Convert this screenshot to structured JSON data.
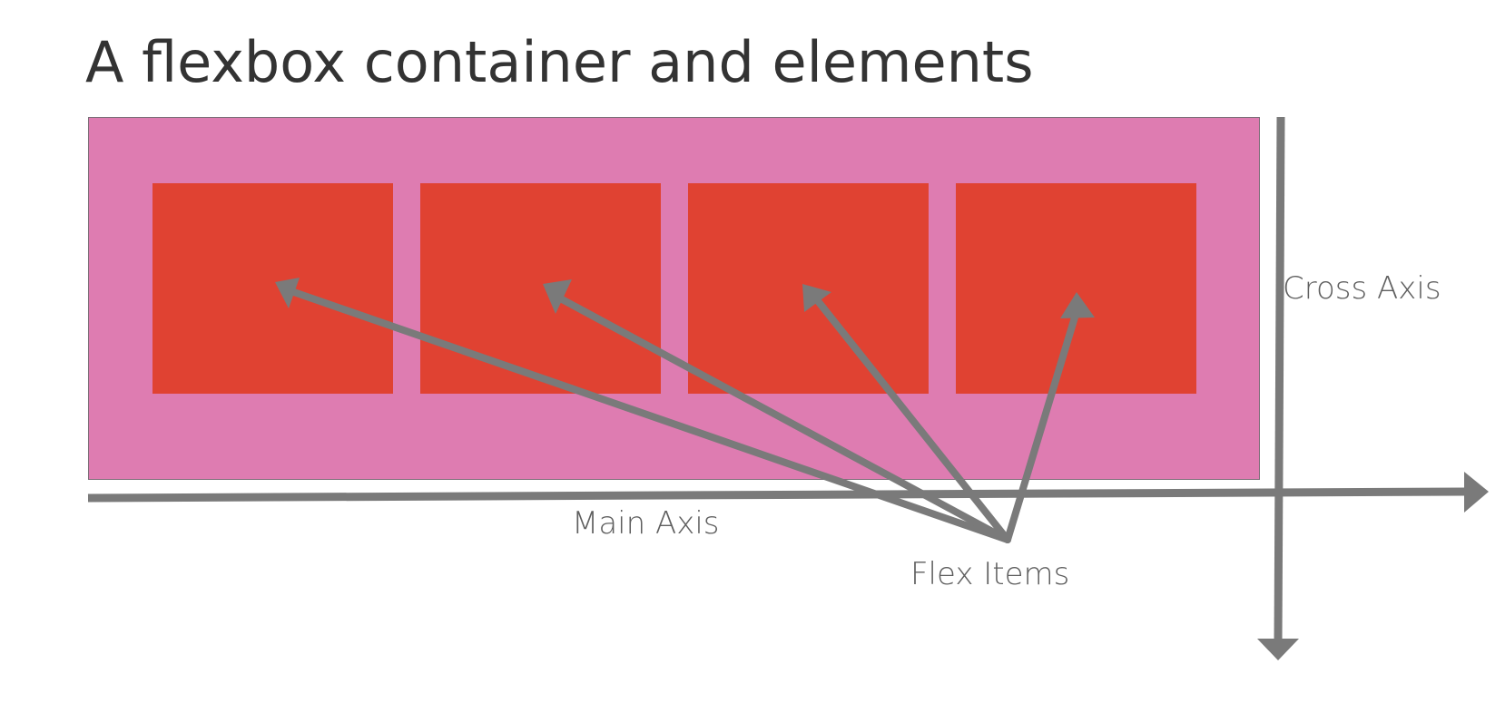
{
  "title": "A flexbox container and elements",
  "labels": {
    "main_axis": "Main Axis",
    "cross_axis": "Cross Axis",
    "flex_items": "Flex Items"
  },
  "flex_items_count": 4,
  "colors": {
    "container_fill": "#de7cb1",
    "container_border": "#7d6e78",
    "item_fill": "#e04232",
    "arrow": "#7a7a7a",
    "text": "#333333"
  }
}
